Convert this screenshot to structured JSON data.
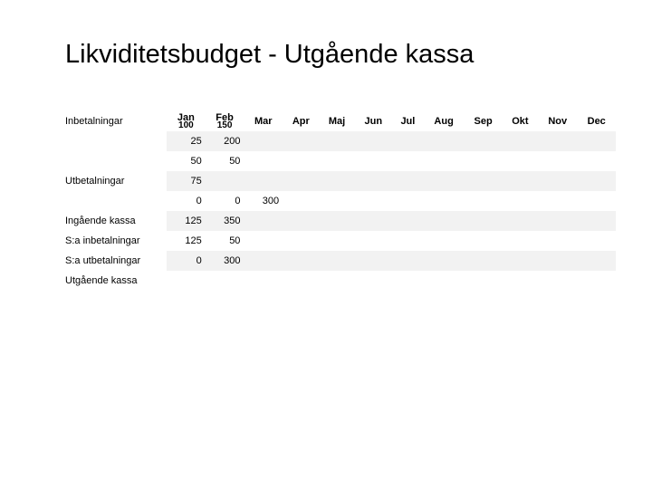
{
  "title": "Likviditetsbudget  - Utgående kassa",
  "months": [
    "Jan",
    "Feb",
    "Mar",
    "Apr",
    "Maj",
    "Jun",
    "Jul",
    "Aug",
    "Sep",
    "Okt",
    "Nov",
    "Dec"
  ],
  "header_sub": [
    "100",
    "150",
    "",
    "",
    "",
    "",
    "",
    "",
    "",
    "",
    "",
    ""
  ],
  "row_labels": [
    "Inbetalningar",
    "",
    "Utbetalningar",
    "",
    "Ingående kassa",
    "S:a inbetalningar",
    "S:a utbetalningar",
    "Utgående kassa"
  ],
  "rows": [
    [
      "25",
      "200",
      "",
      "",
      "",
      "",
      "",
      "",
      "",
      "",
      "",
      ""
    ],
    [
      "50",
      "50",
      "",
      "",
      "",
      "",
      "",
      "",
      "",
      "",
      "",
      ""
    ],
    [
      "75",
      "",
      "",
      "",
      "",
      "",
      "",
      "",
      "",
      "",
      "",
      ""
    ],
    [
      "0",
      "0",
      "300",
      "",
      "",
      "",
      "",
      "",
      "",
      "",
      "",
      ""
    ],
    [
      "125",
      "350",
      "",
      "",
      "",
      "",
      "",
      "",
      "",
      "",
      "",
      ""
    ],
    [
      "125",
      "50",
      "",
      "",
      "",
      "",
      "",
      "",
      "",
      "",
      "",
      ""
    ],
    [
      "0",
      "300",
      "",
      "",
      "",
      "",
      "",
      "",
      "",
      "",
      "",
      ""
    ],
    [
      "",
      "",
      "",
      "",
      "",
      "",
      "",
      "",
      "",
      "",
      "",
      ""
    ]
  ],
  "colors": {
    "stripe": "#f2f2f2",
    "bg": "#ffffff",
    "text": "#000000"
  }
}
